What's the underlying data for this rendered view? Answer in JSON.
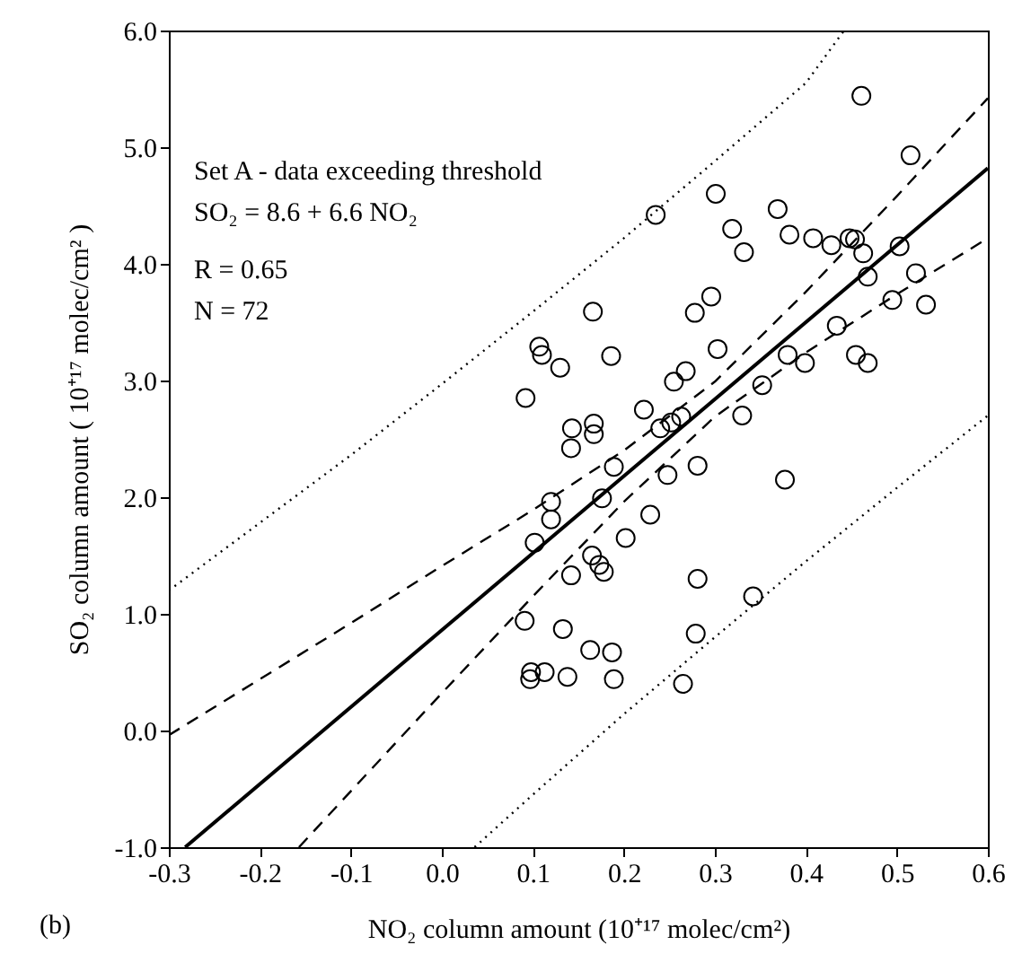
{
  "chart_data": {
    "type": "scatter",
    "xlabel": "NO₂ column amount  (10⁺¹⁷ molec/cm²)",
    "ylabel": "SO₂ column amount  ( 10⁺¹⁷ molec/cm² )",
    "annotations": [
      "Set A - data exceeding threshold",
      "SO₂ = 8.6 + 6.6 NO₂",
      "R = 0.65",
      "N = 72",
      "(b)"
    ],
    "xlim": [
      -0.3,
      0.6
    ],
    "ylim": [
      -1.0,
      6.0
    ],
    "xticks": [
      {
        "value": -0.3,
        "label": "-0.3"
      },
      {
        "value": -0.2,
        "label": "-0.2"
      },
      {
        "value": -0.1,
        "label": "-0.1"
      },
      {
        "value": 0,
        "label": "0.0"
      },
      {
        "value": 0.1,
        "label": "0.1"
      },
      {
        "value": 0.2,
        "label": "0.2"
      },
      {
        "value": 0.3,
        "label": "0.3"
      },
      {
        "value": 0.4,
        "label": "0.4"
      },
      {
        "value": 0.5,
        "label": "0.5"
      },
      {
        "value": 0.6,
        "label": "0.6"
      }
    ],
    "yticks": [
      {
        "value": -1,
        "label": "-1.0"
      },
      {
        "value": 0,
        "label": "0.0"
      },
      {
        "value": 1,
        "label": "1.0"
      },
      {
        "value": 2,
        "label": "2.0"
      },
      {
        "value": 3,
        "label": "3.0"
      },
      {
        "value": 4,
        "label": "4.0"
      },
      {
        "value": 5,
        "label": "5.0"
      },
      {
        "value": 6,
        "label": "6.0"
      }
    ],
    "grid": false,
    "series": [
      {
        "color": "#000000",
        "marker": "circle",
        "x": [
          0.461,
          0.515,
          0.235,
          0.301,
          0.369,
          0.319,
          0.332,
          0.382,
          0.408,
          0.428,
          0.448,
          0.454,
          0.463,
          0.503,
          0.468,
          0.521,
          0.532,
          0.495,
          0.434,
          0.455,
          0.468,
          0.38,
          0.399,
          0.352,
          0.33,
          0.296,
          0.278,
          0.303,
          0.268,
          0.255,
          0.166,
          0.107,
          0.11,
          0.13,
          0.186,
          0.092,
          0.222,
          0.252,
          0.263,
          0.24,
          0.143,
          0.167,
          0.167,
          0.142,
          0.189,
          0.248,
          0.281,
          0.377,
          0.12,
          0.176,
          0.12,
          0.102,
          0.202,
          0.229,
          0.165,
          0.173,
          0.178,
          0.142,
          0.281,
          0.342,
          0.091,
          0.133,
          0.163,
          0.187,
          0.279,
          0.098,
          0.113,
          0.097,
          0.138,
          0.189,
          0.265
        ],
        "values": [
          5.44,
          4.93,
          4.42,
          4.6,
          4.47,
          4.3,
          4.1,
          4.25,
          4.22,
          4.16,
          4.22,
          4.21,
          4.09,
          4.15,
          3.89,
          3.92,
          3.65,
          3.69,
          3.47,
          3.22,
          3.15,
          3.22,
          3.15,
          2.96,
          2.7,
          3.72,
          3.58,
          3.27,
          3.08,
          2.99,
          3.59,
          3.29,
          3.22,
          3.11,
          3.21,
          2.85,
          2.75,
          2.64,
          2.69,
          2.59,
          2.59,
          2.63,
          2.54,
          2.42,
          2.26,
          2.19,
          2.27,
          2.15,
          1.96,
          1.99,
          1.81,
          1.61,
          1.65,
          1.85,
          1.5,
          1.42,
          1.36,
          1.33,
          1.3,
          1.15,
          0.94,
          0.87,
          0.69,
          0.67,
          0.83,
          0.5,
          0.5,
          0.44,
          0.46,
          0.44,
          0.4
        ]
      },
      {
        "type": "line",
        "color": "#000000",
        "line_style": "solid",
        "x": [
          -0.282,
          0.6
        ],
        "values": [
          -1.0,
          4.82
        ]
      },
      {
        "type": "line",
        "color": "#000000",
        "line_style": "dashed",
        "x": [
          -0.3,
          -0.2,
          -0.1,
          0,
          0.1,
          0.2,
          0.3,
          0.4,
          0.5,
          0.6
        ],
        "values": [
          -0.04,
          0.44,
          0.92,
          1.41,
          1.89,
          2.4,
          2.99,
          3.76,
          4.58,
          5.42
        ]
      },
      {
        "type": "line",
        "color": "#000000",
        "line_style": "dashed",
        "x": [
          -0.157,
          -0.1,
          0,
          0.1,
          0.2,
          0.3,
          0.4,
          0.5,
          0.6
        ],
        "values": [
          -1.0,
          -0.52,
          0.32,
          1.15,
          1.96,
          2.69,
          3.24,
          3.74,
          4.22
        ]
      },
      {
        "type": "line",
        "color": "#000000",
        "line_style": "dotted",
        "x": [
          -0.3,
          -0.2,
          -0.1,
          0,
          0.1,
          0.2,
          0.3,
          0.4,
          0.442
        ],
        "values": [
          1.2,
          1.78,
          2.36,
          2.97,
          3.59,
          4.22,
          4.88,
          5.55,
          6.0
        ]
      },
      {
        "type": "line",
        "color": "#000000",
        "line_style": "dotted",
        "x": [
          0.036,
          0.1,
          0.2,
          0.3,
          0.4,
          0.5,
          0.6
        ],
        "values": [
          -1.0,
          -0.55,
          0.14,
          0.8,
          1.45,
          2.08,
          2.7
        ]
      }
    ]
  }
}
